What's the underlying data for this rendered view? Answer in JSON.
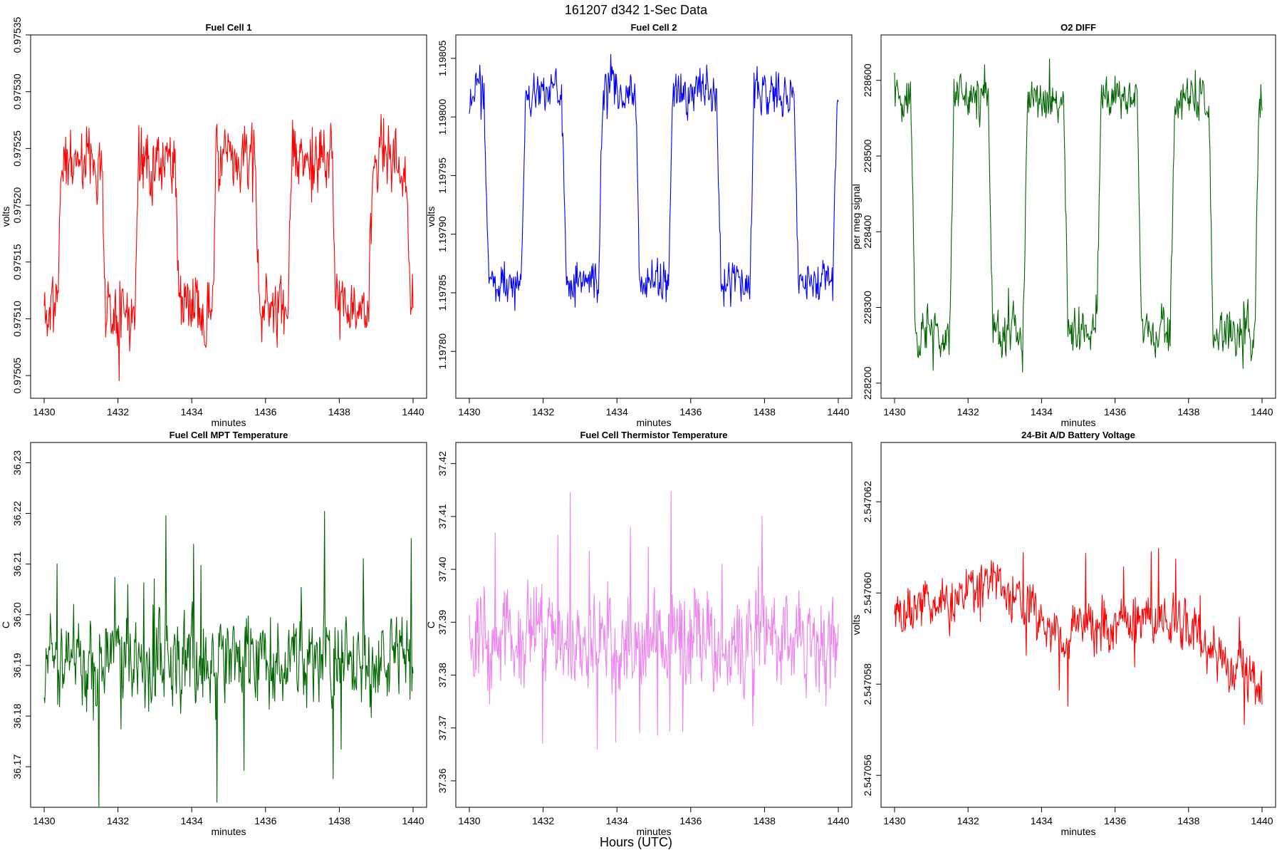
{
  "figure": {
    "title": "161207    d342    1-Sec Data",
    "footer": "Hours (UTC)"
  },
  "chart_data": [
    {
      "type": "line",
      "title": "Fuel Cell 1",
      "xlabel": "minutes",
      "ylabel": "volts",
      "color": "#ff0000",
      "xlim": [
        1430,
        1440
      ],
      "ylim": [
        0.97503,
        0.97535
      ],
      "xticks": [
        1430,
        1432,
        1434,
        1436,
        1438,
        1440
      ],
      "xtick_labels": [
        "1430",
        "1432",
        "1434",
        "1436",
        "1438",
        "1440"
      ],
      "yticks": [
        0.97505,
        0.9751,
        0.97515,
        0.9752,
        0.97525,
        0.9753,
        0.97535
      ],
      "ytick_labels": [
        "0.97505",
        "0.97510",
        "0.97515",
        "0.97520",
        "0.97525",
        "0.97530",
        "0.97535"
      ],
      "pattern": {
        "kind": "square",
        "low": 0.97511,
        "high": 0.97524,
        "noise": 4.5e-05,
        "spikes": 2e-05,
        "seed": 11,
        "segments": [
          [
            1430.0,
            0
          ],
          [
            1430.35,
            1
          ],
          [
            1431.55,
            0
          ],
          [
            1432.45,
            1
          ],
          [
            1433.55,
            0
          ],
          [
            1434.55,
            1
          ],
          [
            1435.7,
            0
          ],
          [
            1436.6,
            1
          ],
          [
            1437.8,
            0
          ],
          [
            1438.8,
            1
          ],
          [
            1439.8,
            0
          ]
        ]
      }
    },
    {
      "type": "line",
      "title": "Fuel Cell 2",
      "xlabel": "minutes",
      "ylabel": "volts",
      "color": "#0000ff",
      "xlim": [
        1430,
        1440
      ],
      "ylim": [
        1.19776,
        1.19807
      ],
      "xticks": [
        1430,
        1432,
        1434,
        1436,
        1438,
        1440
      ],
      "xtick_labels": [
        "1430",
        "1432",
        "1434",
        "1436",
        "1438",
        "1440"
      ],
      "yticks": [
        1.1978,
        1.19785,
        1.1979,
        1.19795,
        1.198,
        1.19805
      ],
      "ytick_labels": [
        "1.19780",
        "1.19785",
        "1.19790",
        "1.19795",
        "1.19800",
        "1.19805"
      ],
      "pattern": {
        "kind": "square",
        "low": 1.19786,
        "high": 1.19802,
        "noise": 2.8e-05,
        "spikes": 1e-05,
        "seed": 23,
        "segments": [
          [
            1430.0,
            1
          ],
          [
            1430.4,
            0
          ],
          [
            1431.4,
            1
          ],
          [
            1432.5,
            0
          ],
          [
            1433.5,
            1
          ],
          [
            1434.5,
            0
          ],
          [
            1435.4,
            1
          ],
          [
            1436.7,
            0
          ],
          [
            1437.6,
            1
          ],
          [
            1438.8,
            0
          ],
          [
            1439.85,
            1
          ]
        ]
      }
    },
    {
      "type": "line",
      "title": "O2 DIFF",
      "xlabel": "minutes",
      "ylabel": "per meg signal",
      "color": "#006400",
      "xlim": [
        1430,
        1440
      ],
      "ylim": [
        228180,
        228660
      ],
      "xticks": [
        1430,
        1432,
        1434,
        1436,
        1438,
        1440
      ],
      "xtick_labels": [
        "1430",
        "1432",
        "1434",
        "1436",
        "1438",
        "1440"
      ],
      "yticks": [
        228200,
        228300,
        228400,
        228500,
        228600
      ],
      "ytick_labels": [
        "228200",
        "228300",
        "228400",
        "228500",
        "228600"
      ],
      "pattern": {
        "kind": "square",
        "low": 228265,
        "high": 228575,
        "noise": 45,
        "spikes": 20,
        "seed": 37,
        "segments": [
          [
            1430.0,
            1
          ],
          [
            1430.45,
            0
          ],
          [
            1431.5,
            1
          ],
          [
            1432.55,
            0
          ],
          [
            1433.5,
            1
          ],
          [
            1434.6,
            0
          ],
          [
            1435.5,
            1
          ],
          [
            1436.6,
            0
          ],
          [
            1437.5,
            1
          ],
          [
            1438.55,
            0
          ],
          [
            1439.8,
            1
          ]
        ]
      }
    },
    {
      "type": "line",
      "title": "Fuel Cell MPT Temperature",
      "xlabel": "minutes",
      "ylabel": "C",
      "color": "#006400",
      "xlim": [
        1430,
        1440
      ],
      "ylim": [
        36.162,
        36.234
      ],
      "xticks": [
        1430,
        1432,
        1434,
        1436,
        1438,
        1440
      ],
      "xtick_labels": [
        "1430",
        "1432",
        "1434",
        "1436",
        "1438",
        "1440"
      ],
      "yticks": [
        36.17,
        36.18,
        36.19,
        36.2,
        36.21,
        36.22,
        36.23
      ],
      "ytick_labels": [
        "36.17",
        "36.18",
        "36.19",
        "36.20",
        "36.21",
        "36.22",
        "36.23"
      ],
      "pattern": {
        "kind": "noise",
        "mean": 36.191,
        "noise": 0.013,
        "spikes": 0.012,
        "seed": 51
      }
    },
    {
      "type": "line",
      "title": "Fuel Cell Thermistor Temperature",
      "xlabel": "minutes",
      "ylabel": "C",
      "color": "#ee82ee",
      "xlim": [
        1430,
        1440
      ],
      "ylim": [
        37.355,
        37.424
      ],
      "xticks": [
        1430,
        1432,
        1434,
        1436,
        1438,
        1440
      ],
      "xtick_labels": [
        "1430",
        "1432",
        "1434",
        "1436",
        "1438",
        "1440"
      ],
      "yticks": [
        37.36,
        37.37,
        37.38,
        37.39,
        37.4,
        37.41,
        37.42
      ],
      "ytick_labels": [
        "37.36",
        "37.37",
        "37.38",
        "37.39",
        "37.40",
        "37.41",
        "37.42"
      ],
      "pattern": {
        "kind": "noise",
        "mean": 37.386,
        "noise": 0.014,
        "spikes": 0.012,
        "seed": 67
      }
    },
    {
      "type": "line",
      "title": "24-Bit A/D Battery Voltage",
      "xlabel": "minutes",
      "ylabel": "volts",
      "color": "#ff0000",
      "xlim": [
        1430,
        1440
      ],
      "ylim": [
        2.5470553,
        2.5470633
      ],
      "xticks": [
        1430,
        1432,
        1434,
        1436,
        1438,
        1440
      ],
      "xtick_labels": [
        "1430",
        "1432",
        "1434",
        "1436",
        "1438",
        "1440"
      ],
      "yticks": [
        2.547056,
        2.547058,
        2.54706,
        2.547062
      ],
      "ytick_labels": [
        "2.547056",
        "2.547058",
        "2.547060",
        "2.547062"
      ],
      "pattern": {
        "kind": "drift",
        "noise": 9e-07,
        "spikes": 7e-07,
        "seed": 83,
        "points": [
          [
            1430,
            2.5470595
          ],
          [
            1432.7,
            2.5470602
          ],
          [
            1434.5,
            2.5470592
          ],
          [
            1436.4,
            2.5470594
          ],
          [
            1438,
            2.5470592
          ],
          [
            1439.4,
            2.5470583
          ],
          [
            1440,
            2.5470581
          ]
        ]
      }
    }
  ]
}
